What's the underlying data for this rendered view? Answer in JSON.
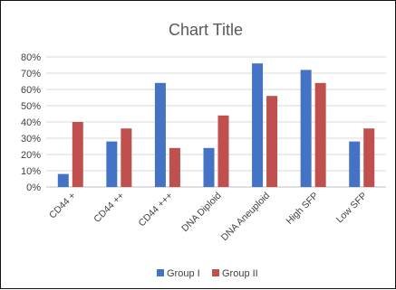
{
  "chart_data": {
    "type": "bar",
    "title": "Chart Title",
    "xlabel": "",
    "ylabel": "",
    "ylim": [
      0,
      80
    ],
    "y_ticks": [
      "0%",
      "10%",
      "20%",
      "30%",
      "40%",
      "50%",
      "60%",
      "70%",
      "80%"
    ],
    "grid": true,
    "legend_position": "bottom",
    "categories": [
      "CD44 +",
      "CD44 ++",
      "CD44 +++",
      "DNA Diploid",
      "DNA Aneuploid",
      "High SFP",
      "Low SFP"
    ],
    "series": [
      {
        "name": "Group I",
        "color": "#4472C4",
        "values": [
          8,
          28,
          64,
          24,
          76,
          72,
          28
        ]
      },
      {
        "name": "Group II",
        "color": "#C0504D",
        "values": [
          40,
          36,
          24,
          44,
          56,
          64,
          36
        ]
      }
    ]
  }
}
